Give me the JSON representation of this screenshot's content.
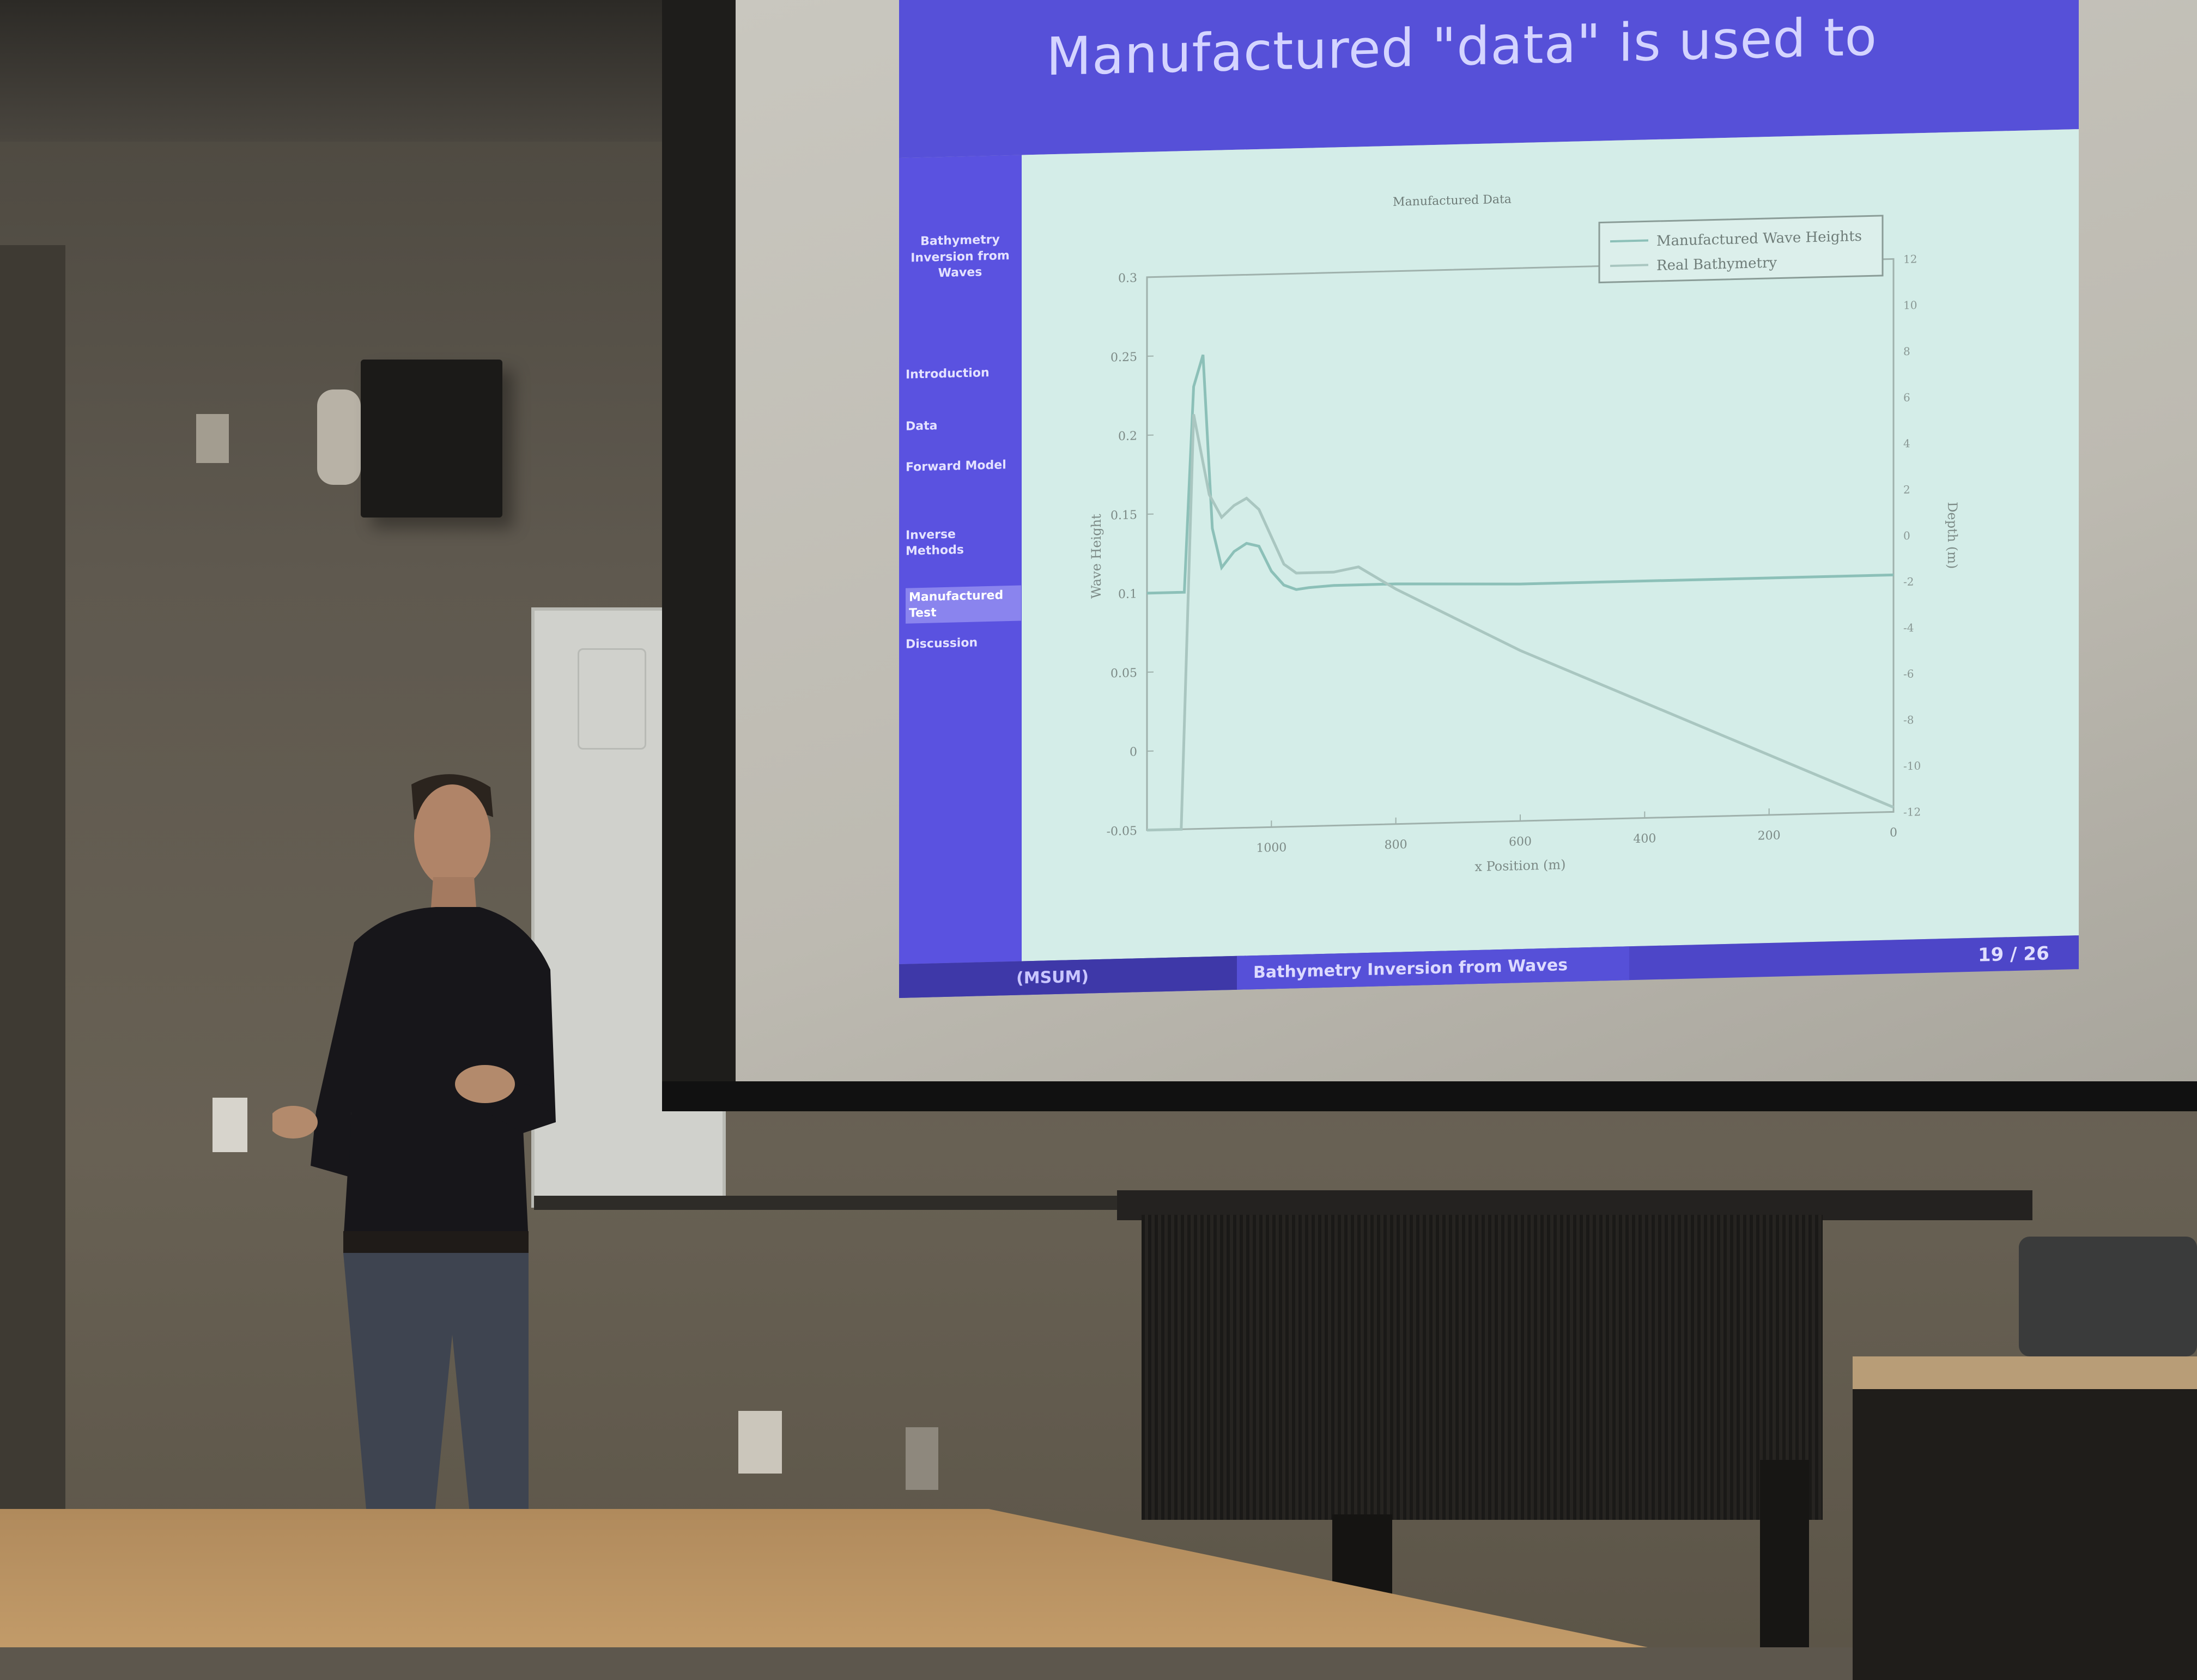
{
  "slide": {
    "title": "Manufactured \"data\" is used to",
    "sidebar_project": "Bathymetry Inversion from Waves",
    "nav": [
      "Introduction",
      "Data",
      "Forward Model",
      "Inverse Methods",
      "Manufactured Test",
      "Discussion"
    ],
    "footer_author": "(MSUM)",
    "footer_title": "Bathymetry Inversion from Waves",
    "footer_page": "19 / 26"
  },
  "chart_data": {
    "type": "line",
    "title": "Manufactured Data",
    "xlabel": "x Position (m)",
    "ylabel": "Wave Height",
    "y2label": "Depth (m)",
    "xlim": [
      1200,
      0
    ],
    "ylim": [
      -0.05,
      0.3
    ],
    "y2lim": [
      -12,
      12
    ],
    "x_ticks": [
      "1000",
      "800",
      "600",
      "400",
      "200",
      "0"
    ],
    "y_ticks": [
      "-0.05",
      "0",
      "0.05",
      "0.1",
      "0.15",
      "0.2",
      "0.25",
      "0.3"
    ],
    "y2_ticks": [
      "-12",
      "-10",
      "-8",
      "-6",
      "-4",
      "-2",
      "0",
      "2",
      "4",
      "6",
      "8",
      "10",
      "12"
    ],
    "legend": [
      "Manufactured Wave Heights",
      "Real Bathymetry"
    ],
    "legend_position": "top-right",
    "series": [
      {
        "name": "Manufactured Wave Heights",
        "x": [
          1200,
          1160,
          1140,
          1125,
          1110,
          1095,
          1080,
          1060,
          1040,
          1020,
          1000,
          980,
          960,
          940,
          900,
          800,
          600,
          400,
          200,
          0
        ],
        "y": [
          0.1,
          0.1,
          0.1,
          0.23,
          0.25,
          0.14,
          0.115,
          0.125,
          0.13,
          0.128,
          0.112,
          0.103,
          0.1,
          0.101,
          0.102,
          0.102,
          0.1,
          0.1,
          0.1,
          0.1
        ]
      },
      {
        "name": "Real Bathymetry",
        "x": [
          1200,
          1160,
          1145,
          1125,
          1100,
          1080,
          1060,
          1040,
          1020,
          1000,
          980,
          960,
          900,
          860,
          800,
          700,
          600,
          500,
          400,
          300,
          200,
          100,
          0
        ],
        "y2": [
          -12,
          -12,
          -12,
          6,
          2.5,
          1.5,
          2,
          2.3,
          1.8,
          0.6,
          -0.6,
          -1.0,
          -1.0,
          -0.8,
          -1.8,
          -3.2,
          -4.6,
          -5.8,
          -7.0,
          -8.2,
          -9.4,
          -10.6,
          -11.8
        ]
      }
    ]
  }
}
